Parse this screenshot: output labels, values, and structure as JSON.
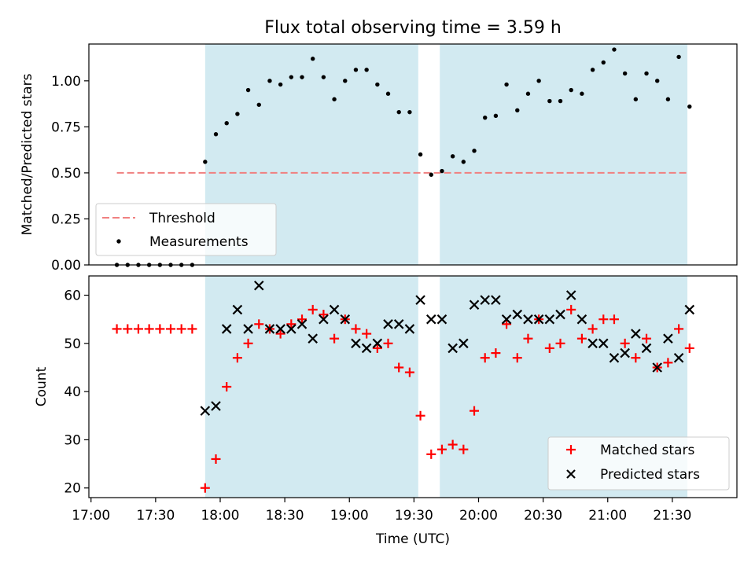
{
  "title": "Flux total observing time = 3.59 h",
  "xlabel": "Time (UTC)",
  "x_ticks": [
    "17:00",
    "17:30",
    "18:00",
    "18:30",
    "19:00",
    "19:30",
    "20:00",
    "20:30",
    "21:00",
    "21:30"
  ],
  "colors": {
    "shade": "#add8e6",
    "threshold": "#f08080",
    "matched": "#ff0000",
    "predicted": "#000000",
    "measurement": "#000000"
  },
  "chart_data": [
    {
      "type": "scatter",
      "ylabel": "Matched/Predicted stars",
      "xlim": [
        "16:59",
        "22:00"
      ],
      "ylim": [
        0,
        1.2
      ],
      "y_ticks": [
        "0.00",
        "0.25",
        "0.50",
        "0.75",
        "1.00"
      ],
      "grid": false,
      "legend_position": "lower-left",
      "legend": {
        "threshold": "Threshold",
        "measurements": "Measurements"
      },
      "shaded_intervals": [
        [
          "17:53",
          "19:32"
        ],
        [
          "19:42",
          "21:37"
        ]
      ],
      "threshold": {
        "name": "Threshold",
        "value": 0.5,
        "x_start": "17:12",
        "x_end": "21:37"
      },
      "series": [
        {
          "name": "Measurements",
          "x": [
            "17:12",
            "17:17",
            "17:22",
            "17:27",
            "17:32",
            "17:37",
            "17:42",
            "17:47",
            "17:53",
            "17:58",
            "18:03",
            "18:08",
            "18:13",
            "18:18",
            "18:23",
            "18:28",
            "18:33",
            "18:38",
            "18:43",
            "18:48",
            "18:53",
            "18:58",
            "19:03",
            "19:08",
            "19:13",
            "19:18",
            "19:23",
            "19:28",
            "19:33",
            "19:38",
            "19:43",
            "19:48",
            "19:53",
            "19:58",
            "20:03",
            "20:08",
            "20:13",
            "20:18",
            "20:23",
            "20:28",
            "20:33",
            "20:38",
            "20:43",
            "20:48",
            "20:53",
            "20:58",
            "21:03",
            "21:08",
            "21:13",
            "21:18",
            "21:23",
            "21:28",
            "21:33",
            "21:38"
          ],
          "y": [
            0,
            0,
            0,
            0,
            0,
            0,
            0,
            0,
            0.56,
            0.71,
            0.77,
            0.82,
            0.95,
            0.87,
            1.0,
            0.98,
            1.02,
            1.02,
            1.12,
            1.02,
            0.9,
            1.0,
            1.06,
            1.06,
            0.98,
            0.93,
            0.83,
            0.83,
            0.6,
            0.49,
            0.51,
            0.59,
            0.56,
            0.62,
            0.8,
            0.81,
            0.98,
            0.84,
            0.93,
            1.0,
            0.89,
            0.89,
            0.95,
            0.93,
            1.06,
            1.1,
            1.17,
            1.04,
            0.9,
            1.04,
            1.0,
            0.9,
            1.13,
            0.86
          ]
        }
      ]
    },
    {
      "type": "scatter",
      "ylabel": "Count",
      "xlim": [
        "16:59",
        "22:00"
      ],
      "ylim": [
        18,
        64
      ],
      "y_ticks": [
        "20",
        "30",
        "40",
        "50",
        "60"
      ],
      "grid": false,
      "legend_position": "lower-right",
      "legend": {
        "matched": "Matched stars",
        "predicted": "Predicted stars"
      },
      "shaded_intervals": [
        [
          "17:53",
          "19:32"
        ],
        [
          "19:42",
          "21:37"
        ]
      ],
      "series": [
        {
          "name": "Matched stars",
          "x": [
            "17:12",
            "17:17",
            "17:22",
            "17:27",
            "17:32",
            "17:37",
            "17:42",
            "17:47",
            "17:53",
            "17:58",
            "18:03",
            "18:08",
            "18:13",
            "18:18",
            "18:23",
            "18:28",
            "18:33",
            "18:38",
            "18:43",
            "18:48",
            "18:53",
            "18:58",
            "19:03",
            "19:08",
            "19:13",
            "19:18",
            "19:23",
            "19:28",
            "19:33",
            "19:38",
            "19:43",
            "19:48",
            "19:53",
            "19:58",
            "20:03",
            "20:08",
            "20:13",
            "20:18",
            "20:23",
            "20:28",
            "20:33",
            "20:38",
            "20:43",
            "20:48",
            "20:53",
            "20:58",
            "21:03",
            "21:08",
            "21:13",
            "21:18",
            "21:23",
            "21:28",
            "21:33",
            "21:38"
          ],
          "y": [
            53,
            53,
            53,
            53,
            53,
            53,
            53,
            53,
            20,
            26,
            41,
            47,
            50,
            54,
            53,
            52,
            54,
            55,
            57,
            56,
            51,
            55,
            53,
            52,
            49,
            50,
            45,
            44,
            35,
            27,
            28,
            29,
            28,
            36,
            47,
            48,
            54,
            47,
            51,
            55,
            49,
            50,
            57,
            51,
            53,
            55,
            55,
            50,
            47,
            51,
            45,
            46,
            53,
            49
          ]
        },
        {
          "name": "Predicted stars",
          "x": [
            "17:53",
            "17:58",
            "18:03",
            "18:08",
            "18:13",
            "18:18",
            "18:23",
            "18:28",
            "18:33",
            "18:38",
            "18:43",
            "18:48",
            "18:53",
            "18:58",
            "19:03",
            "19:08",
            "19:13",
            "19:18",
            "19:23",
            "19:28",
            "19:33",
            "19:38",
            "19:43",
            "19:48",
            "19:53",
            "19:58",
            "20:03",
            "20:08",
            "20:13",
            "20:18",
            "20:23",
            "20:28",
            "20:33",
            "20:38",
            "20:43",
            "20:48",
            "20:53",
            "20:58",
            "21:03",
            "21:08",
            "21:13",
            "21:18",
            "21:23",
            "21:28",
            "21:33",
            "21:38"
          ],
          "y": [
            36,
            37,
            53,
            57,
            53,
            62,
            53,
            53,
            53,
            54,
            51,
            55,
            57,
            55,
            50,
            49,
            50,
            54,
            54,
            53,
            59,
            55,
            55,
            49,
            50,
            58,
            59,
            59,
            55,
            56,
            55,
            55,
            55,
            56,
            60,
            55,
            50,
            50,
            47,
            48,
            52,
            49,
            45,
            51,
            47,
            57
          ]
        }
      ]
    }
  ]
}
